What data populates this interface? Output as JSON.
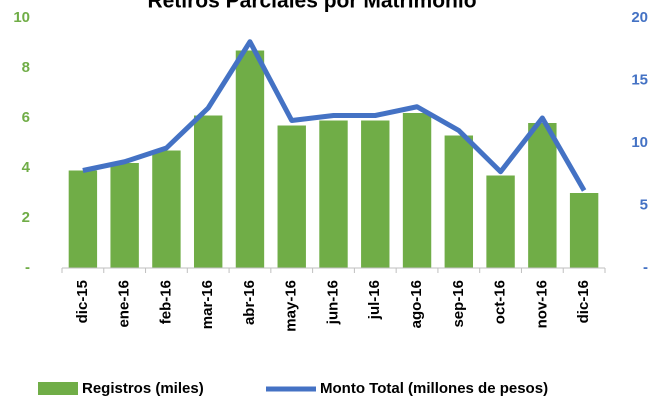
{
  "chart_data": {
    "type": "bar_line",
    "title": "Retiros Parciales por Matrimonio",
    "categories": [
      "dic-15",
      "ene-16",
      "feb-16",
      "mar-16",
      "abr-16",
      "may-16",
      "jun-16",
      "jul-16",
      "ago-16",
      "sep-16",
      "oct-16",
      "nov-16",
      "dic-16"
    ],
    "series": [
      {
        "name": "Registros (miles)",
        "color": "#70ad47",
        "type": "bar",
        "axis": "y",
        "values": [
          3.9,
          4.2,
          4.7,
          6.1,
          8.7,
          5.7,
          5.9,
          5.9,
          6.2,
          5.3,
          3.7,
          5.8,
          3.0
        ]
      },
      {
        "name": "Monto Total (millones de pesos)",
        "color": "#4472c4",
        "type": "line",
        "axis": "y2",
        "values": [
          7.8,
          8.5,
          9.6,
          12.8,
          18.1,
          11.8,
          12.2,
          12.2,
          12.9,
          11.0,
          7.7,
          12.0,
          6.2
        ]
      }
    ],
    "ylim": [
      0,
      10
    ],
    "yticks": [
      {
        "value": 0,
        "label": "-"
      },
      2,
      4,
      6,
      8,
      10
    ],
    "y2lim": [
      0,
      20
    ],
    "y2ticks": [
      {
        "value": 0,
        "label": "-"
      },
      5,
      10,
      15,
      20
    ],
    "grid": false,
    "legend": "bottom"
  }
}
